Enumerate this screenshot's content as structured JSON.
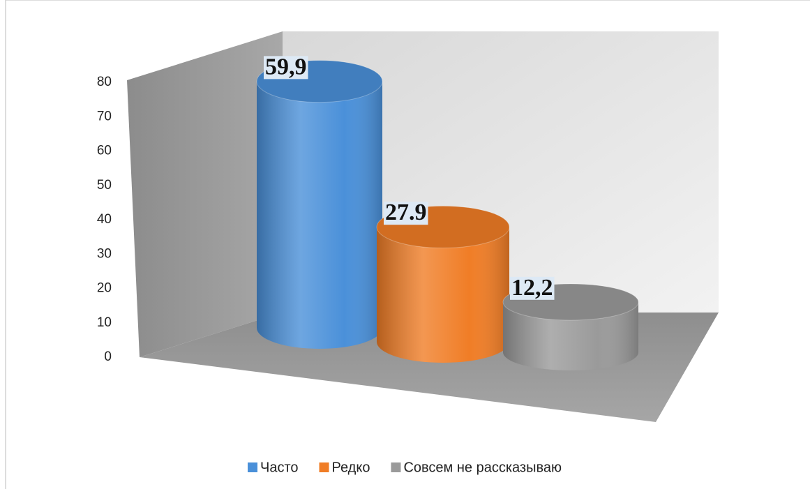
{
  "chart_data": {
    "type": "cylinder3d",
    "series": [
      {
        "name": "Часто",
        "color": "#4a90d9",
        "values": [
          59.9
        ],
        "value_labels": [
          "59,9"
        ]
      },
      {
        "name": "Редко",
        "color": "#f07d26",
        "values": [
          27.9
        ],
        "value_labels": [
          "27.9"
        ]
      },
      {
        "name": "Совсем не рассказываю",
        "color": "#9a9a9a",
        "values": [
          12.2
        ],
        "value_labels": [
          "12,2"
        ]
      }
    ],
    "ylim": [
      0,
      80
    ],
    "yticks": [
      0,
      10,
      20,
      30,
      40,
      50,
      60,
      70,
      80
    ],
    "legend": "bottom"
  }
}
